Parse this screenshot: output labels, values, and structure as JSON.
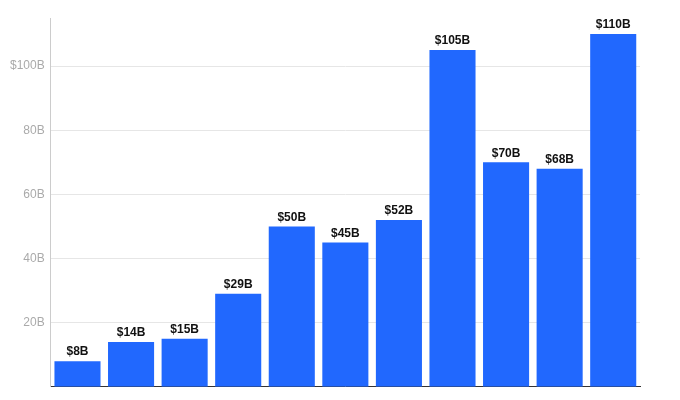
{
  "chart_data": {
    "type": "bar",
    "categories": [
      null,
      null,
      null,
      null,
      null,
      null,
      null,
      null,
      null,
      null,
      null
    ],
    "values": [
      8,
      14,
      15,
      29,
      50,
      45,
      52,
      105,
      70,
      68,
      110
    ],
    "value_labels": [
      "$8B",
      "$14B",
      "$15B",
      "$29B",
      "$50B",
      "$45B",
      "$52B",
      "$105B",
      "$70B",
      "$68B",
      "$110B"
    ],
    "data_labels": true,
    "color": "#2168fe",
    "ylim": [
      0,
      115
    ],
    "yticks": [
      {
        "value": 20,
        "label": "20B"
      },
      {
        "value": 40,
        "label": "40B"
      },
      {
        "value": 60,
        "label": "60B"
      },
      {
        "value": 80,
        "label": "80B"
      },
      {
        "value": 100,
        "label": "$100B"
      }
    ],
    "grid": true
  }
}
